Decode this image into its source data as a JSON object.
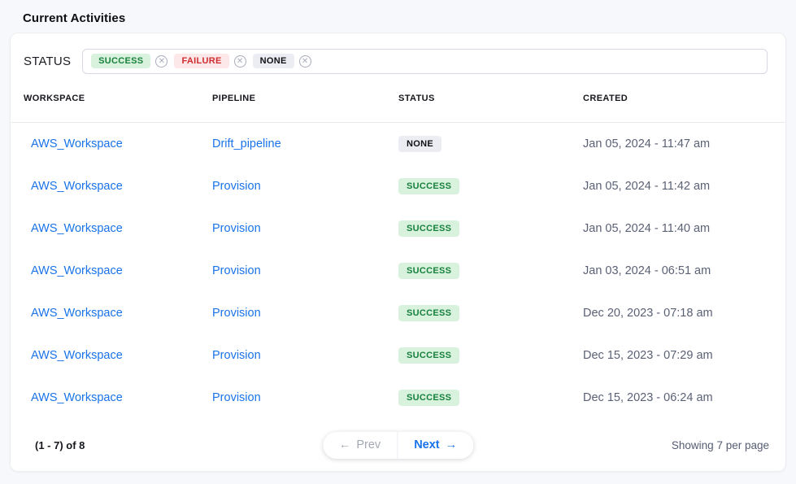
{
  "page": {
    "title": "Current Activities"
  },
  "filter": {
    "label": "STATUS",
    "remove_icon_glyph": "✕",
    "selected": [
      {
        "label": "SUCCESS",
        "variant": "success"
      },
      {
        "label": "FAILURE",
        "variant": "failure"
      },
      {
        "label": "NONE",
        "variant": "none"
      }
    ]
  },
  "table": {
    "columns": [
      "WORKSPACE",
      "PIPELINE",
      "STATUS",
      "CREATED"
    ],
    "rows": [
      {
        "workspace": "AWS_Workspace",
        "pipeline": "Drift_pipeline",
        "status": "NONE",
        "variant": "none",
        "created": "Jan 05, 2024 - 11:47 am"
      },
      {
        "workspace": "AWS_Workspace",
        "pipeline": "Provision",
        "status": "SUCCESS",
        "variant": "success",
        "created": "Jan 05, 2024 - 11:42 am"
      },
      {
        "workspace": "AWS_Workspace",
        "pipeline": "Provision",
        "status": "SUCCESS",
        "variant": "success",
        "created": "Jan 05, 2024 - 11:40 am"
      },
      {
        "workspace": "AWS_Workspace",
        "pipeline": "Provision",
        "status": "SUCCESS",
        "variant": "success",
        "created": "Jan 03, 2024 - 06:51 am"
      },
      {
        "workspace": "AWS_Workspace",
        "pipeline": "Provision",
        "status": "SUCCESS",
        "variant": "success",
        "created": "Dec 20, 2023 - 07:18 am"
      },
      {
        "workspace": "AWS_Workspace",
        "pipeline": "Provision",
        "status": "SUCCESS",
        "variant": "success",
        "created": "Dec 15, 2023 - 07:29 am"
      },
      {
        "workspace": "AWS_Workspace",
        "pipeline": "Provision",
        "status": "SUCCESS",
        "variant": "success",
        "created": "Dec 15, 2023 - 06:24 am"
      }
    ]
  },
  "pagination": {
    "range_text": "(1 - 7) of 8",
    "prev_arrow": "←",
    "prev_label": "Prev",
    "next_label": "Next",
    "next_arrow": "→",
    "per_page_text": "Showing 7 per page"
  },
  "colors": {
    "link": "#1a73e8",
    "success_bg": "#d9f2de",
    "success_text": "#17813c",
    "failure_bg": "#fce8e8",
    "failure_text": "#ce2c31",
    "none_bg": "#ececf3",
    "none_text": "#101114",
    "page_bg": "#f7f8fb",
    "muted_text": "#5b6175"
  }
}
